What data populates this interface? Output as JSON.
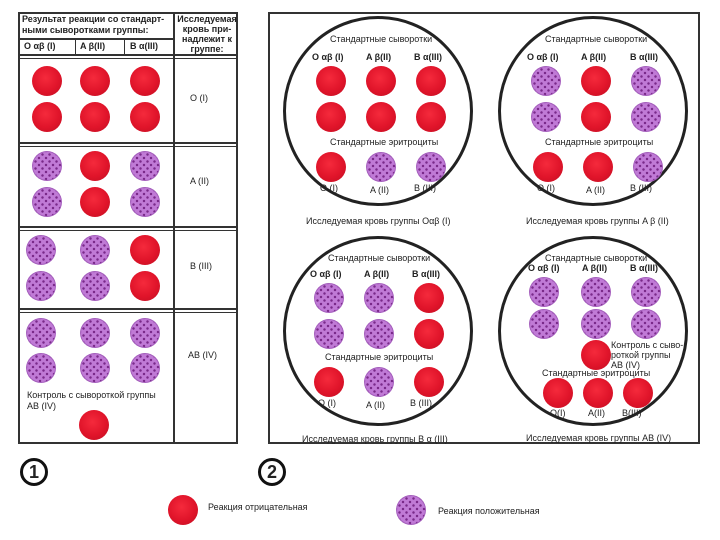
{
  "table": {
    "header_result": "Результат реакции со стандарт-\nными сыворотками группы:",
    "header_group": "Исследуемая\nкровь при-\nнадлежит к\nгруппе:",
    "col1": "O αβ (I)",
    "col2": "A β(II)",
    "col3": "B α(III)",
    "rows": [
      {
        "group": "O (I)",
        "dots": [
          "neg",
          "neg",
          "neg",
          "neg",
          "neg",
          "neg"
        ]
      },
      {
        "group": "A (II)",
        "dots": [
          "pos",
          "neg",
          "pos",
          "pos",
          "neg",
          "pos"
        ]
      },
      {
        "group": "B (III)",
        "dots": [
          "pos",
          "pos",
          "neg",
          "pos",
          "pos",
          "neg"
        ]
      },
      {
        "group": "AB (IV)",
        "dots": [
          "pos",
          "pos",
          "pos",
          "pos",
          "pos",
          "pos"
        ]
      }
    ],
    "control_label": "Контроль с сывороткой группы\nAB (IV)"
  },
  "badges": {
    "one": "1",
    "two": "2"
  },
  "circles": [
    {
      "title": "Стандартные сыворотки",
      "sera": [
        "O αβ (I)",
        "A β(II)",
        "B α(III)"
      ],
      "serum_dots": [
        "neg",
        "neg",
        "neg",
        "neg",
        "neg",
        "neg"
      ],
      "erythro_title": "Стандартные эритроциты",
      "erythro_dots": [
        "neg",
        "pos",
        "pos"
      ],
      "erythro_labels": [
        "O (I)",
        "A (II)",
        "B (III)"
      ],
      "caption": "Исследуемая кровь группы Oαβ (I)"
    },
    {
      "title": "Стандартные сыворотки",
      "sera": [
        "O αβ (I)",
        "A β(II)",
        "B α(III)"
      ],
      "serum_dots": [
        "pos",
        "neg",
        "pos",
        "pos",
        "neg",
        "pos"
      ],
      "erythro_title": "Стандартные эритроциты",
      "erythro_dots": [
        "neg",
        "neg",
        "pos"
      ],
      "erythro_labels": [
        "O (I)",
        "A (II)",
        "B (III)"
      ],
      "caption": "Исследуемая кровь группы A β (II)"
    },
    {
      "title": "Стандартные сыворотки",
      "sera": [
        "O αβ (I)",
        "A β(II)",
        "B α(III)"
      ],
      "serum_dots": [
        "pos",
        "pos",
        "neg",
        "pos",
        "pos",
        "neg"
      ],
      "erythro_title": "Стандартные эритроциты",
      "erythro_dots": [
        "neg",
        "pos",
        "neg"
      ],
      "erythro_labels": [
        "O (I)",
        "A (II)",
        "B (III)"
      ],
      "caption": "Исследуемая кровь группы B α (III)"
    },
    {
      "title": "Стандартные сыворотки",
      "sera": [
        "O αβ (I)",
        "A β(II)",
        "B α(III)"
      ],
      "serum_dots": [
        "pos",
        "pos",
        "pos",
        "pos",
        "pos",
        "pos"
      ],
      "control_label": "Контроль с сыво-\nроткой группы\nAB (IV)",
      "erythro_title": "Стандартные эритроциты",
      "erythro_dots": [
        "neg",
        "neg",
        "neg"
      ],
      "erythro_labels": [
        "O(I)",
        "A(II)",
        "B(III)"
      ],
      "caption": "Исследуемая кровь группы AB (IV)"
    }
  ],
  "legend": {
    "negative": "Реакция отрицательная",
    "positive": "Реакция положительная"
  },
  "colors": {
    "negative": "#e0142a",
    "positive": "#c07ad6"
  }
}
